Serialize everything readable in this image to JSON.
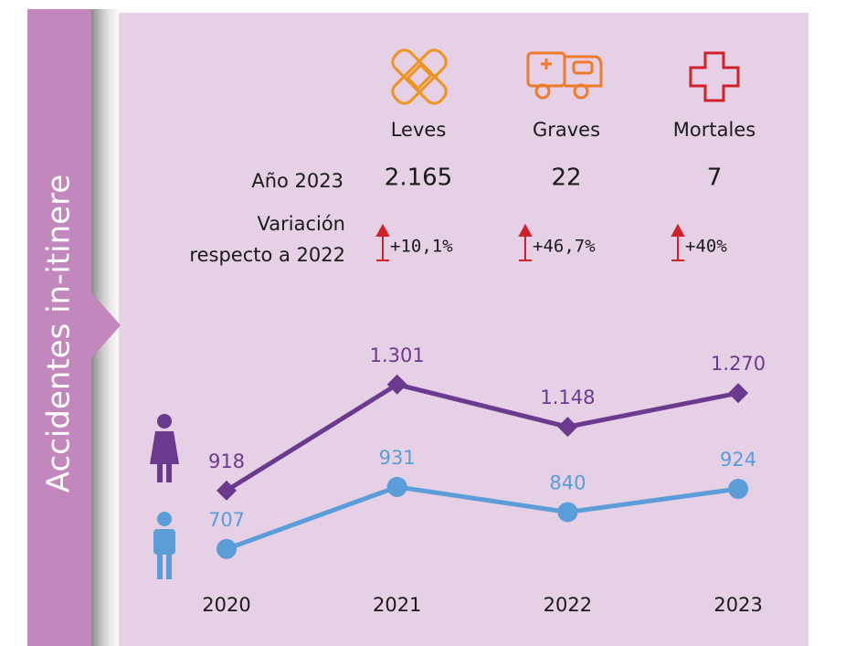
{
  "side_title": "Accidentes in-itinere",
  "stats": {
    "columns": [
      "Leves",
      "Graves",
      "Mortales"
    ],
    "year_label": "Año 2023",
    "year_values": [
      "2.165",
      "22",
      "7"
    ],
    "variation_label": [
      "Variación",
      "respecto a 2022"
    ],
    "variations": [
      "+10,1%",
      "+46,7%",
      "+40%"
    ]
  },
  "chart_data": {
    "type": "line",
    "categories": [
      "2020",
      "2021",
      "2022",
      "2023"
    ],
    "series": [
      {
        "color": "#6b3a8e",
        "marker": "diamond",
        "values": [
          918,
          1301,
          1148,
          1270
        ],
        "value_labels": [
          "918",
          "1.301",
          "1.148",
          "1.270"
        ]
      },
      {
        "color": "#5b9dd8",
        "marker": "circle",
        "values": [
          707,
          931,
          840,
          924
        ],
        "value_labels": [
          "707",
          "931",
          "840",
          "924"
        ]
      }
    ]
  }
}
